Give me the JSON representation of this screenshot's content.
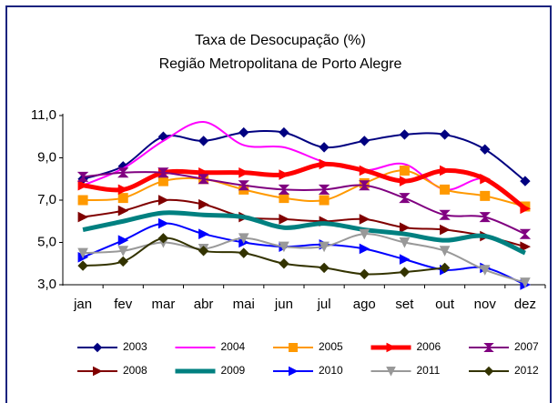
{
  "chart_data": {
    "type": "line",
    "title": "Taxa de Desocupação (%)",
    "subtitle": "Região Metropolitana de Porto Alegre",
    "categories": [
      "jan",
      "fev",
      "mar",
      "abr",
      "mai",
      "jun",
      "jul",
      "ago",
      "set",
      "out",
      "nov",
      "dez"
    ],
    "ylim": [
      3,
      11
    ],
    "yticks": [
      {
        "value": 3,
        "label": "3,0"
      },
      {
        "value": 5,
        "label": "5,0"
      },
      {
        "value": 7,
        "label": "7,0"
      },
      {
        "value": 9,
        "label": "9,0"
      },
      {
        "value": 11,
        "label": "11,0"
      }
    ],
    "grid": false,
    "legend": "bottom",
    "series": [
      {
        "name": "2003",
        "color": "#000080",
        "marker": "diamond",
        "line_width": 2,
        "values": [
          8.0,
          8.6,
          10.0,
          9.8,
          10.2,
          10.2,
          9.5,
          9.8,
          10.1,
          10.1,
          9.4,
          7.9
        ]
      },
      {
        "name": "2004",
        "color": "#ff00ff",
        "marker": "none",
        "line_width": 2,
        "values": [
          7.7,
          8.5,
          9.8,
          10.7,
          9.6,
          9.5,
          8.8,
          8.4,
          8.7,
          7.5,
          8.0,
          6.6
        ]
      },
      {
        "name": "2005",
        "color": "#ff9900",
        "marker": "square",
        "line_width": 2,
        "values": [
          7.0,
          7.1,
          7.9,
          8.0,
          7.5,
          7.1,
          7.0,
          7.8,
          8.4,
          7.5,
          7.2,
          6.7
        ]
      },
      {
        "name": "2006",
        "color": "#ff0000",
        "marker": "triangle-right",
        "line_width": 5,
        "values": [
          7.7,
          7.5,
          8.3,
          8.3,
          8.3,
          8.2,
          8.7,
          8.4,
          7.9,
          8.4,
          8.0,
          6.6
        ]
      },
      {
        "name": "2007",
        "color": "#800080",
        "marker": "hourglass",
        "line_width": 2,
        "values": [
          8.1,
          8.3,
          8.3,
          8.0,
          7.7,
          7.5,
          7.5,
          7.7,
          7.1,
          6.3,
          6.2,
          5.4
        ]
      },
      {
        "name": "2008",
        "color": "#800000",
        "marker": "triangle-right",
        "line_width": 2,
        "values": [
          6.2,
          6.5,
          7.0,
          6.8,
          6.2,
          6.1,
          6.0,
          6.1,
          5.7,
          5.6,
          5.3,
          4.8
        ]
      },
      {
        "name": "2009",
        "color": "#008080",
        "marker": "none",
        "line_width": 5,
        "values": [
          5.6,
          6.0,
          6.4,
          6.3,
          6.2,
          5.7,
          5.9,
          5.6,
          5.4,
          5.1,
          5.3,
          4.5
        ]
      },
      {
        "name": "2010",
        "color": "#0000ff",
        "marker": "triangle-right",
        "line_width": 2,
        "values": [
          4.3,
          5.1,
          5.9,
          5.4,
          5.0,
          4.8,
          4.9,
          4.7,
          4.2,
          3.7,
          3.8,
          3.0
        ]
      },
      {
        "name": "2011",
        "color": "#999999",
        "marker": "triangle-down",
        "line_width": 2,
        "values": [
          4.5,
          4.6,
          5.0,
          4.7,
          5.2,
          4.8,
          4.8,
          5.4,
          5.0,
          4.6,
          3.7,
          3.1
        ]
      },
      {
        "name": "2012",
        "color": "#333300",
        "marker": "diamond",
        "line_width": 2,
        "values": [
          3.9,
          4.1,
          5.2,
          4.6,
          4.5,
          4.0,
          3.8,
          3.5,
          3.6,
          3.8,
          null,
          null
        ]
      }
    ]
  }
}
